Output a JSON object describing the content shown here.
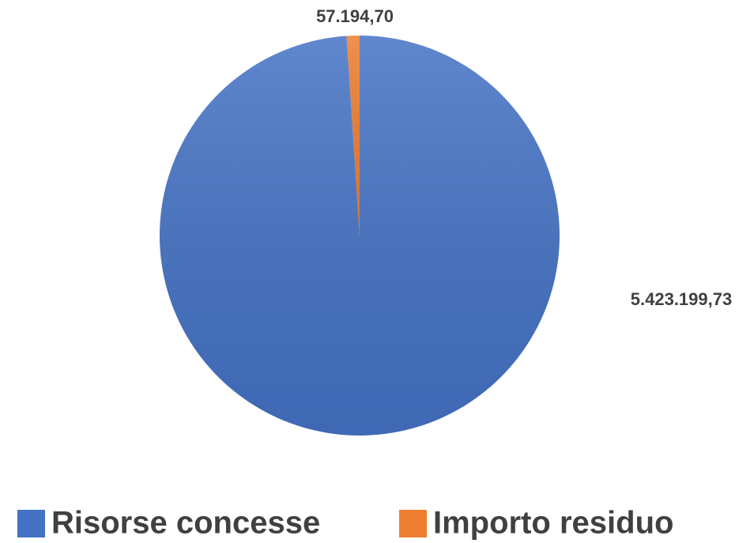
{
  "chart_data": {
    "type": "pie",
    "categories": [
      "Risorse concesse",
      "Importo residuo"
    ],
    "values": [
      5423199.73,
      57194.7
    ],
    "value_labels": [
      "5.423.199,73",
      "57.194,70"
    ],
    "colors": [
      "#4472c4",
      "#ed7d31"
    ],
    "legend": "bottom"
  }
}
